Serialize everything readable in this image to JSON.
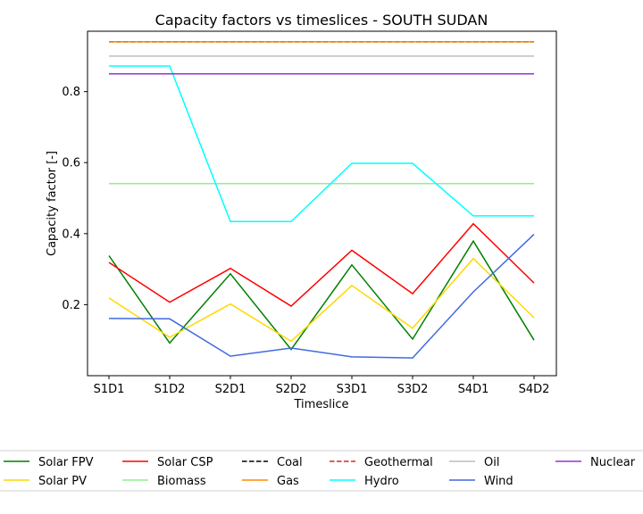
{
  "chart_data": {
    "type": "line",
    "title": "Capacity factors vs timeslices - SOUTH SUDAN",
    "xlabel": "Timeslice",
    "ylabel": "Capacity factor [-]",
    "categories": [
      "S1D1",
      "S1D2",
      "S2D1",
      "S2D2",
      "S3D1",
      "S3D2",
      "S4D1",
      "S4D2"
    ],
    "ylim": [
      0.0,
      0.97
    ],
    "yticks": [
      0.2,
      0.4,
      0.6,
      0.8
    ],
    "ytick_labels": [
      "0.2",
      "0.4",
      "0.6",
      "0.8"
    ],
    "grid": false,
    "legend_placement": "bottom",
    "series": [
      {
        "name": "Solar FPV",
        "color": "#008000",
        "dash": "solid",
        "values": [
          0.338,
          0.092,
          0.287,
          0.074,
          0.312,
          0.103,
          0.379,
          0.1
        ]
      },
      {
        "name": "Solar PV",
        "color": "#ffd700",
        "dash": "solid",
        "values": [
          0.219,
          0.108,
          0.202,
          0.097,
          0.254,
          0.134,
          0.33,
          0.163
        ]
      },
      {
        "name": "Solar CSP",
        "color": "#ff0000",
        "dash": "solid",
        "values": [
          0.319,
          0.207,
          0.302,
          0.196,
          0.353,
          0.231,
          0.428,
          0.261
        ]
      },
      {
        "name": "Biomass",
        "color": "#90ee90",
        "dash": "solid",
        "values": [
          0.541,
          0.541,
          0.541,
          0.541,
          0.541,
          0.541,
          0.541,
          0.541
        ]
      },
      {
        "name": "Coal",
        "color": "#000000",
        "dash": "dashed",
        "values": [
          0.94,
          0.94,
          0.94,
          0.94,
          0.94,
          0.94,
          0.94,
          0.94
        ]
      },
      {
        "name": "Gas",
        "color": "#ff8c00",
        "dash": "solid",
        "values": [
          0.94,
          0.94,
          0.94,
          0.94,
          0.94,
          0.94,
          0.94,
          0.94
        ]
      },
      {
        "name": "Geothermal",
        "color": "#d62728",
        "dash": "dashed",
        "values": [
          0.85,
          0.85,
          0.85,
          0.85,
          0.85,
          0.85,
          0.85,
          0.85
        ]
      },
      {
        "name": "Hydro",
        "color": "#00ffff",
        "dash": "solid",
        "values": [
          0.872,
          0.872,
          0.434,
          0.434,
          0.598,
          0.598,
          0.45,
          0.45
        ]
      },
      {
        "name": "Oil",
        "color": "#bebebe",
        "dash": "solid",
        "values": [
          0.9,
          0.9,
          0.9,
          0.9,
          0.9,
          0.9,
          0.9,
          0.9
        ]
      },
      {
        "name": "Wind",
        "color": "#4169e1",
        "dash": "solid",
        "values": [
          0.161,
          0.16,
          0.055,
          0.078,
          0.053,
          0.05,
          0.236,
          0.398
        ]
      },
      {
        "name": "Nuclear",
        "color": "#9932cc",
        "dash": "solid",
        "values": [
          0.85,
          0.85,
          0.85,
          0.85,
          0.85,
          0.85,
          0.85,
          0.85
        ]
      }
    ],
    "legend_order": [
      "Solar FPV",
      "Solar PV",
      "Solar CSP",
      "Biomass",
      "Coal",
      "Gas",
      "Geothermal",
      "Hydro",
      "Oil",
      "Wind",
      "Nuclear"
    ],
    "draw_order": [
      "Solar FPV",
      "Solar PV",
      "Solar CSP",
      "Biomass",
      "Coal",
      "Gas",
      "Geothermal",
      "Hydro",
      "Oil",
      "Wind",
      "Nuclear"
    ]
  }
}
